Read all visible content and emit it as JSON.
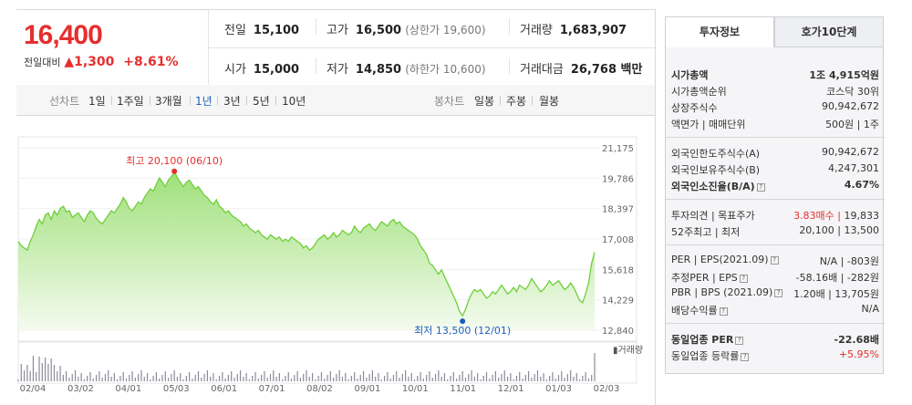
{
  "price": {
    "current": "16,400",
    "change_label": "전일대비",
    "change_arrow": "▲",
    "change_value": "1,300",
    "change_pct": "+8.61%"
  },
  "summary": {
    "prev_close": {
      "label": "전일",
      "value": "15,100"
    },
    "high": {
      "label": "고가",
      "value": "16,500",
      "sub": "(상한가 19,600)"
    },
    "volume": {
      "label": "거래량",
      "value": "1,683,907"
    },
    "open": {
      "label": "시가",
      "value": "15,000"
    },
    "low": {
      "label": "저가",
      "value": "14,850",
      "sub": "(하한가 10,600)"
    },
    "amount": {
      "label": "거래대금",
      "value": "26,768 백만"
    }
  },
  "period_bar": {
    "line_label": "선차트",
    "line_periods": [
      "1일",
      "1주일",
      "3개월",
      "1년",
      "3년",
      "5년",
      "10년"
    ],
    "active": "1년",
    "candle_label": "봉차트",
    "candle_periods": [
      "일봉",
      "주봉",
      "월봉"
    ]
  },
  "chart_data": {
    "type": "area",
    "y_ticks": [
      "21,175",
      "19,786",
      "18,397",
      "17,008",
      "15,618",
      "14,229",
      "12,840"
    ],
    "ylim": [
      12840,
      21175
    ],
    "x_ticks": [
      "02/04",
      "03/02",
      "04/01",
      "05/03",
      "06/01",
      "07/01",
      "08/02",
      "09/01",
      "10/01",
      "11/01",
      "12/01",
      "01/03",
      "02/03"
    ],
    "high_annotation": "최고 20,100 (06/10)",
    "low_annotation": "최저 13,500 (12/01)",
    "volume_label": "거래량",
    "series": [
      {
        "values": [
          16900,
          16700,
          16600,
          16500,
          16900,
          17200,
          17600,
          17900,
          17700,
          18100,
          18200,
          17900,
          18300,
          18100,
          18400,
          18500,
          18250,
          18300,
          18000,
          18100,
          18200,
          18000,
          17800,
          18100,
          18300,
          18200,
          17950,
          17800,
          17700,
          17900,
          18100,
          18300,
          18200,
          18400,
          18600,
          18900,
          18700,
          18400,
          18300,
          18500,
          18700,
          18600,
          18900,
          19100,
          19300,
          19200,
          19500,
          19800,
          19600,
          19400,
          19700,
          19850,
          20100,
          19800,
          19600,
          19400,
          19600,
          19700,
          19500,
          19300,
          19400,
          19200,
          19000,
          18900,
          18700,
          18600,
          18800,
          18500,
          18400,
          18200,
          18300,
          18100,
          18000,
          17900,
          17800,
          17600,
          17700,
          17500,
          17400,
          17300,
          17400,
          17200,
          17100,
          17000,
          17200,
          17100,
          17000,
          17100,
          16900,
          17000,
          16900,
          17100,
          17000,
          16900,
          16800,
          16600,
          16700,
          16500,
          16600,
          16800,
          17000,
          17100,
          17200,
          17000,
          17100,
          17300,
          17100,
          17200,
          17400,
          17300,
          17200,
          17300,
          17600,
          17400,
          17300,
          17500,
          17600,
          17700,
          17500,
          17400,
          17600,
          17800,
          17700,
          17600,
          17800,
          17900,
          17700,
          17800,
          17600,
          17500,
          17400,
          17300,
          17200,
          17000,
          16700,
          16500,
          16300,
          15900,
          15800,
          15600,
          15400,
          15600,
          15300,
          15000,
          14700,
          14400,
          14100,
          13700,
          13500,
          13800,
          14200,
          14500,
          14700,
          14600,
          14700,
          14500,
          14300,
          14400,
          14600,
          14500,
          14700,
          14900,
          14700,
          14500,
          14600,
          14800,
          14600,
          14900,
          14800,
          14700,
          14900,
          15200,
          15000,
          14800,
          14600,
          14700,
          14900,
          15100,
          14900,
          15000,
          15100,
          14900,
          14700,
          14800,
          15000,
          14800,
          14500,
          14200,
          14100,
          14500,
          15000,
          15900,
          16400
        ]
      }
    ]
  },
  "right_panel": {
    "tabs": [
      "투자정보",
      "호가10단계"
    ],
    "rows": [
      {
        "l": "시가총액",
        "r": "1조 4,915억원",
        "bold": true
      },
      {
        "l": "시가총액순위",
        "r": "코스닥 30위"
      },
      {
        "l": "상장주식수",
        "r": "90,942,672"
      },
      {
        "l": "액면가 | 매매단위",
        "r": "500원 | 1주"
      },
      {
        "l": "외국인한도주식수(A)",
        "r": "90,942,672"
      },
      {
        "l": "외국인보유주식수(B)",
        "r": "4,247,301"
      },
      {
        "l": "외국인소진율(B/A)",
        "r": "4.67%",
        "bold": true
      },
      {
        "l": "투자의견 | 목표주가",
        "r1": "3.83매수",
        "r": "19,833"
      },
      {
        "l": "52주최고 | 최저",
        "r": "20,100 | 13,500"
      },
      {
        "l": "PER | EPS(2021.09)",
        "r": "N/A | -803원"
      },
      {
        "l": "추정PER | EPS",
        "r": "-58.16배 | -282원"
      },
      {
        "l": "PBR | BPS (2021.09)",
        "r": "1.20배 | 13,705원"
      },
      {
        "l": "배당수익률",
        "r": "N/A"
      },
      {
        "l": "동일업종 PER",
        "r": "-22.68배",
        "bold": true
      },
      {
        "l": "동일업종 등락률",
        "r": "+5.95%"
      }
    ]
  }
}
